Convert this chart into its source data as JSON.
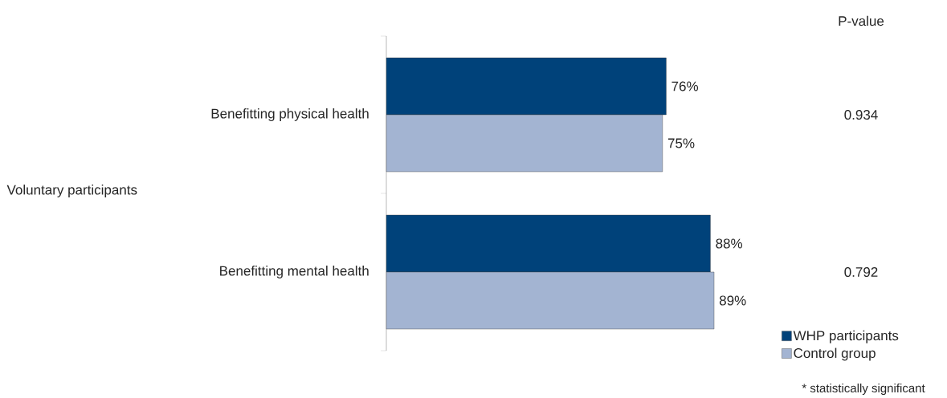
{
  "chart_data": {
    "type": "bar",
    "orientation": "horizontal",
    "categories": [
      "Benefitting physical health",
      "Benefitting mental health"
    ],
    "series": [
      {
        "name": "WHP participants",
        "color": "#00427a",
        "values": [
          76,
          88
        ],
        "value_labels": [
          "76%",
          "88%"
        ]
      },
      {
        "name": "Control group",
        "color": "#a3b4d2",
        "values": [
          75,
          89
        ],
        "value_labels": [
          "75%",
          "89%"
        ]
      }
    ],
    "annotations": [
      "Voluntary participants",
      "P-value",
      "0.934",
      "0.792",
      "* statistically significant"
    ],
    "legend": "bottom right"
  }
}
